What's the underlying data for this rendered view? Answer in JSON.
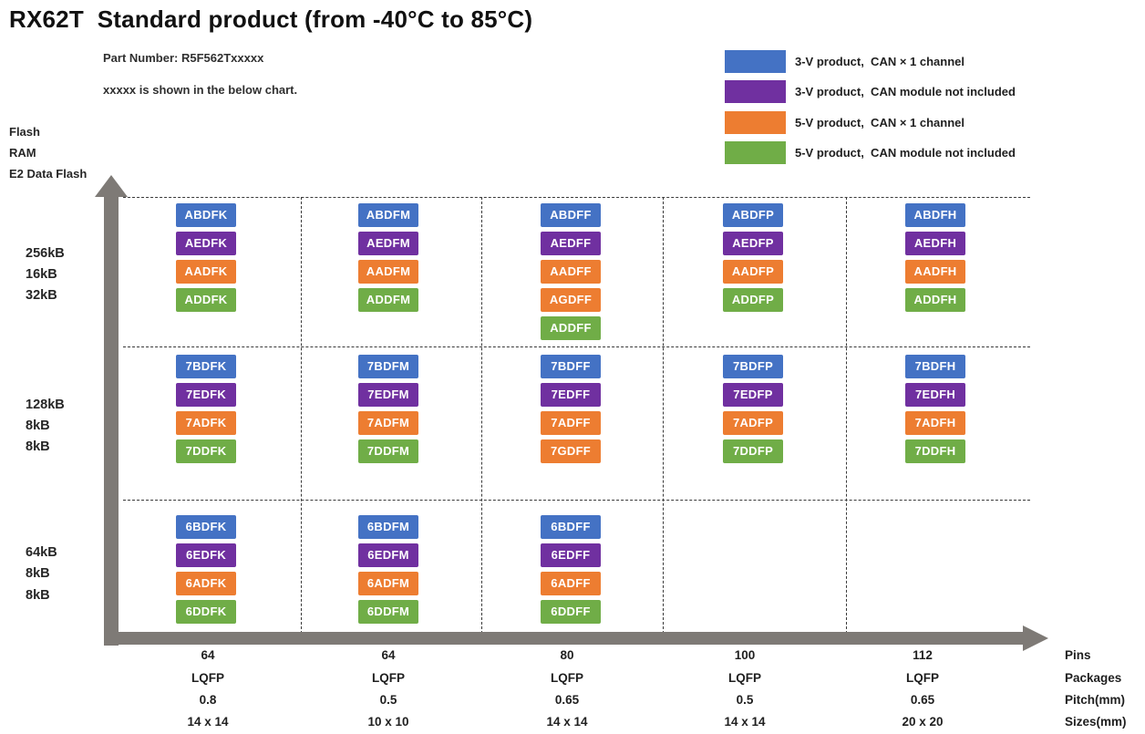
{
  "title": "RX62T  Standard product (from -40°C to 85°C)",
  "subtitle": {
    "part_number": "Part Number: R5F562Txxxxx",
    "note": "xxxxx is shown in the below chart."
  },
  "colors": {
    "blue": "#4472C4",
    "purple": "#7030A0",
    "orange": "#ED7D31",
    "green": "#70AD47",
    "arrow": "#7E7A76",
    "dash": "#3A3A3A"
  },
  "legend": [
    {
      "name": "blue",
      "color": "blue",
      "label": "3-V product,  CAN × 1 channel"
    },
    {
      "name": "purple",
      "color": "purple",
      "label": "3-V product,  CAN module not included"
    },
    {
      "name": "orange",
      "color": "orange",
      "label": "5-V product,  CAN × 1 channel"
    },
    {
      "name": "green",
      "color": "green",
      "label": "5-V product,  CAN module not included"
    }
  ],
  "y_axis": {
    "header_lines": [
      "Flash",
      "RAM",
      "E2 Data Flash"
    ],
    "rows": [
      {
        "flash": "256kB",
        "ram": "16kB",
        "e2": "32kB"
      },
      {
        "flash": "128kB",
        "ram": "8kB",
        "e2": "8kB"
      },
      {
        "flash": "64kB",
        "ram": "8kB",
        "e2": "8kB"
      }
    ]
  },
  "x_axis": {
    "row_labels": [
      "Pins",
      "Packages",
      "Pitch(mm)",
      "Sizes(mm)"
    ],
    "columns": [
      {
        "pins": "64",
        "package": "LQFP",
        "pitch": "0.8",
        "size": "14 x 14"
      },
      {
        "pins": "64",
        "package": "LQFP",
        "pitch": "0.5",
        "size": "10 x 10"
      },
      {
        "pins": "80",
        "package": "LQFP",
        "pitch": "0.65",
        "size": "14 x 14"
      },
      {
        "pins": "100",
        "package": "LQFP",
        "pitch": "0.5",
        "size": "14 x 14"
      },
      {
        "pins": "112",
        "package": "LQFP",
        "pitch": "0.65",
        "size": "20 x 20"
      }
    ]
  },
  "chart_data": {
    "type": "table",
    "title": "RX62T Standard product (from -40°C to 85°C)",
    "rows": [
      "256kB / 16kB / 32kB",
      "128kB / 8kB / 8kB",
      "64kB / 8kB / 8kB"
    ],
    "columns": [
      "64 LQFP 0.8 14x14",
      "64 LQFP 0.5 10x10",
      "80 LQFP 0.65 14x14",
      "100 LQFP 0.5 14x14",
      "112 LQFP 0.65 20x20"
    ],
    "grid": [
      [
        [
          {
            "label": "ABDFK",
            "color": "blue"
          },
          {
            "label": "AEDFK",
            "color": "purple"
          },
          {
            "label": "AADFK",
            "color": "orange"
          },
          {
            "label": "ADDFK",
            "color": "green"
          }
        ],
        [
          {
            "label": "ABDFM",
            "color": "blue"
          },
          {
            "label": "AEDFM",
            "color": "purple"
          },
          {
            "label": "AADFM",
            "color": "orange"
          },
          {
            "label": "ADDFM",
            "color": "green"
          }
        ],
        [
          {
            "label": "ABDFF",
            "color": "blue"
          },
          {
            "label": "AEDFF",
            "color": "purple"
          },
          {
            "label": "AADFF",
            "color": "orange"
          },
          {
            "label": "AGDFF",
            "color": "orange"
          },
          {
            "label": "ADDFF",
            "color": "green"
          }
        ],
        [
          {
            "label": "ABDFP",
            "color": "blue"
          },
          {
            "label": "AEDFP",
            "color": "purple"
          },
          {
            "label": "AADFP",
            "color": "orange"
          },
          {
            "label": "ADDFP",
            "color": "green"
          }
        ],
        [
          {
            "label": "ABDFH",
            "color": "blue"
          },
          {
            "label": "AEDFH",
            "color": "purple"
          },
          {
            "label": "AADFH",
            "color": "orange"
          },
          {
            "label": "ADDFH",
            "color": "green"
          }
        ]
      ],
      [
        [
          {
            "label": "7BDFK",
            "color": "blue"
          },
          {
            "label": "7EDFK",
            "color": "purple"
          },
          {
            "label": "7ADFK",
            "color": "orange"
          },
          {
            "label": "7DDFK",
            "color": "green"
          }
        ],
        [
          {
            "label": "7BDFM",
            "color": "blue"
          },
          {
            "label": "7EDFM",
            "color": "purple"
          },
          {
            "label": "7ADFM",
            "color": "orange"
          },
          {
            "label": "7DDFM",
            "color": "green"
          }
        ],
        [
          {
            "label": "7BDFF",
            "color": "blue"
          },
          {
            "label": "7EDFF",
            "color": "purple"
          },
          {
            "label": "7ADFF",
            "color": "orange"
          },
          {
            "label": "7GDFF",
            "color": "orange"
          }
        ],
        [
          {
            "label": "7BDFP",
            "color": "blue"
          },
          {
            "label": "7EDFP",
            "color": "purple"
          },
          {
            "label": "7ADFP",
            "color": "orange"
          },
          {
            "label": "7DDFP",
            "color": "green"
          }
        ],
        [
          {
            "label": "7BDFH",
            "color": "blue"
          },
          {
            "label": "7EDFH",
            "color": "purple"
          },
          {
            "label": "7ADFH",
            "color": "orange"
          },
          {
            "label": "7DDFH",
            "color": "green"
          }
        ]
      ],
      [
        [
          {
            "label": "6BDFK",
            "color": "blue"
          },
          {
            "label": "6EDFK",
            "color": "purple"
          },
          {
            "label": "6ADFK",
            "color": "orange"
          },
          {
            "label": "6DDFK",
            "color": "green"
          }
        ],
        [
          {
            "label": "6BDFM",
            "color": "blue"
          },
          {
            "label": "6EDFM",
            "color": "purple"
          },
          {
            "label": "6ADFM",
            "color": "orange"
          },
          {
            "label": "6DDFM",
            "color": "green"
          }
        ],
        [
          {
            "label": "6BDFF",
            "color": "blue"
          },
          {
            "label": "6EDFF",
            "color": "purple"
          },
          {
            "label": "6ADFF",
            "color": "orange"
          },
          {
            "label": "6DDFF",
            "color": "green"
          }
        ],
        [],
        []
      ]
    ]
  }
}
